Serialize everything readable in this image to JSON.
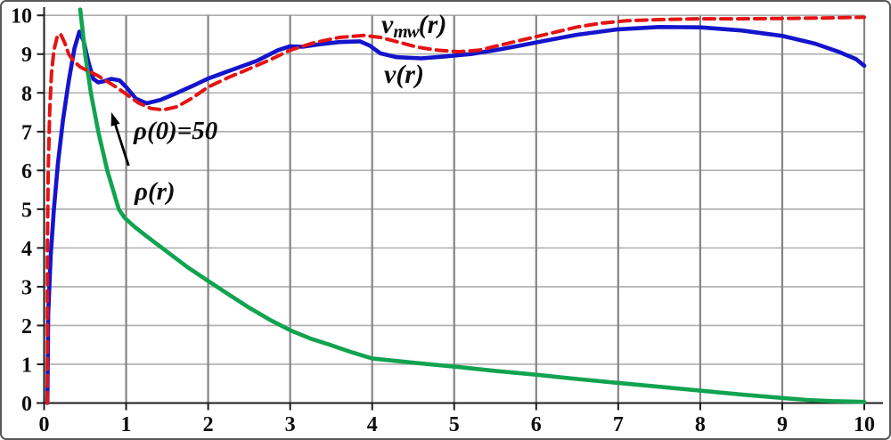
{
  "figure": {
    "background": "#ffffff",
    "border_color": "#585858"
  },
  "labels": {
    "vmw": {
      "main": "v",
      "sub": "mw",
      "rest": "(r)"
    },
    "v": "v(r)",
    "rho0": "ρ(0)=50",
    "rho": "ρ(r)"
  },
  "chart_data": {
    "type": "line",
    "title": "",
    "xlabel": "",
    "ylabel": "",
    "xlim": [
      0,
      10
    ],
    "ylim": [
      0,
      10
    ],
    "xticks": [
      0,
      1,
      2,
      3,
      4,
      5,
      6,
      7,
      8,
      9,
      10
    ],
    "yticks": [
      0,
      1,
      2,
      3,
      4,
      5,
      6,
      7,
      8,
      9,
      10
    ],
    "grid": true,
    "legend_position": "inline-text-labels",
    "colors": {
      "grid_vertical": "#858585",
      "grid_horizontal": "#aeaeae",
      "axis": "#1c1c1c",
      "tick_text": "#0d0d0d",
      "arrow": "#000000"
    },
    "series": [
      {
        "name": "v(r)",
        "color": "#1414cc",
        "style": "solid",
        "width": 4.6,
        "points": [
          [
            0.04,
            0
          ],
          [
            0.05,
            2.3
          ],
          [
            0.08,
            3.8
          ],
          [
            0.12,
            5.0
          ],
          [
            0.17,
            6.2
          ],
          [
            0.23,
            7.3
          ],
          [
            0.3,
            8.3
          ],
          [
            0.37,
            9.15
          ],
          [
            0.43,
            9.58
          ],
          [
            0.48,
            9.35
          ],
          [
            0.54,
            8.8
          ],
          [
            0.6,
            8.36
          ],
          [
            0.66,
            8.27
          ],
          [
            0.73,
            8.3
          ],
          [
            0.82,
            8.36
          ],
          [
            0.92,
            8.32
          ],
          [
            1.0,
            8.15
          ],
          [
            1.12,
            7.85
          ],
          [
            1.25,
            7.73
          ],
          [
            1.42,
            7.82
          ],
          [
            1.6,
            7.98
          ],
          [
            1.8,
            8.17
          ],
          [
            2.0,
            8.37
          ],
          [
            2.3,
            8.6
          ],
          [
            2.6,
            8.83
          ],
          [
            2.85,
            9.1
          ],
          [
            3.0,
            9.2
          ],
          [
            3.15,
            9.19
          ],
          [
            3.35,
            9.25
          ],
          [
            3.6,
            9.31
          ],
          [
            3.85,
            9.33
          ],
          [
            3.97,
            9.22
          ],
          [
            4.1,
            9.02
          ],
          [
            4.3,
            8.92
          ],
          [
            4.6,
            8.89
          ],
          [
            4.9,
            8.94
          ],
          [
            5.2,
            9.0
          ],
          [
            5.5,
            9.1
          ],
          [
            5.8,
            9.22
          ],
          [
            6.1,
            9.34
          ],
          [
            6.5,
            9.5
          ],
          [
            7.0,
            9.64
          ],
          [
            7.5,
            9.7
          ],
          [
            8.0,
            9.69
          ],
          [
            8.5,
            9.61
          ],
          [
            9.0,
            9.47
          ],
          [
            9.4,
            9.27
          ],
          [
            9.7,
            9.05
          ],
          [
            9.9,
            8.87
          ],
          [
            10.0,
            8.7
          ]
        ]
      },
      {
        "name": "rho(r)",
        "color": "#12a350",
        "style": "solid",
        "width": 4.6,
        "points": [
          [
            0.44,
            10.15
          ],
          [
            0.47,
            9.6
          ],
          [
            0.5,
            9.0
          ],
          [
            0.57,
            8.0
          ],
          [
            0.66,
            7.0
          ],
          [
            0.77,
            6.0
          ],
          [
            0.91,
            5.0
          ],
          [
            0.98,
            4.78
          ],
          [
            1.1,
            4.55
          ],
          [
            1.25,
            4.3
          ],
          [
            1.5,
            3.9
          ],
          [
            1.75,
            3.5
          ],
          [
            2.0,
            3.15
          ],
          [
            2.25,
            2.8
          ],
          [
            2.5,
            2.46
          ],
          [
            2.75,
            2.15
          ],
          [
            3.0,
            1.88
          ],
          [
            3.25,
            1.66
          ],
          [
            3.5,
            1.49
          ],
          [
            3.75,
            1.31
          ],
          [
            4.0,
            1.15
          ],
          [
            4.5,
            1.04
          ],
          [
            5.0,
            0.94
          ],
          [
            5.5,
            0.83
          ],
          [
            6.0,
            0.73
          ],
          [
            6.5,
            0.62
          ],
          [
            7.0,
            0.52
          ],
          [
            7.5,
            0.42
          ],
          [
            8.0,
            0.32
          ],
          [
            8.5,
            0.22
          ],
          [
            9.0,
            0.13
          ],
          [
            9.3,
            0.08
          ],
          [
            9.6,
            0.05
          ],
          [
            10.0,
            0.03
          ]
        ]
      },
      {
        "name": "v_mw(r)",
        "color": "#e41414",
        "style": "dashed",
        "dash": "12 7",
        "width": 4.0,
        "points": [
          [
            0.04,
            0
          ],
          [
            0.04,
            4.0
          ],
          [
            0.05,
            6.0
          ],
          [
            0.07,
            7.6
          ],
          [
            0.09,
            8.5
          ],
          [
            0.12,
            9.1
          ],
          [
            0.16,
            9.45
          ],
          [
            0.2,
            9.52
          ],
          [
            0.25,
            9.3
          ],
          [
            0.3,
            9.0
          ],
          [
            0.36,
            8.82
          ],
          [
            0.44,
            8.67
          ],
          [
            0.54,
            8.56
          ],
          [
            0.65,
            8.45
          ],
          [
            0.78,
            8.28
          ],
          [
            0.9,
            8.12
          ],
          [
            1.0,
            7.97
          ],
          [
            1.15,
            7.74
          ],
          [
            1.3,
            7.6
          ],
          [
            1.45,
            7.56
          ],
          [
            1.62,
            7.64
          ],
          [
            1.8,
            7.86
          ],
          [
            2.0,
            8.15
          ],
          [
            2.25,
            8.4
          ],
          [
            2.5,
            8.62
          ],
          [
            2.75,
            8.85
          ],
          [
            3.0,
            9.1
          ],
          [
            3.3,
            9.3
          ],
          [
            3.6,
            9.43
          ],
          [
            3.9,
            9.48
          ],
          [
            4.1,
            9.43
          ],
          [
            4.3,
            9.32
          ],
          [
            4.55,
            9.18
          ],
          [
            4.8,
            9.1
          ],
          [
            5.05,
            9.06
          ],
          [
            5.3,
            9.1
          ],
          [
            5.6,
            9.25
          ],
          [
            5.9,
            9.4
          ],
          [
            6.2,
            9.55
          ],
          [
            6.5,
            9.7
          ],
          [
            6.8,
            9.8
          ],
          [
            7.1,
            9.86
          ],
          [
            7.5,
            9.89
          ],
          [
            8.0,
            9.91
          ],
          [
            8.5,
            9.91
          ],
          [
            9.0,
            9.92
          ],
          [
            9.5,
            9.93
          ],
          [
            10.0,
            9.95
          ]
        ]
      }
    ],
    "annotations": [
      {
        "kind": "arrow",
        "from_xy": [
          1.03,
          6.12
        ],
        "to_xy": [
          0.82,
          7.5
        ]
      },
      {
        "kind": "text",
        "text": "ρ(0)=50",
        "near_xy": [
          1.6,
          6.9
        ]
      },
      {
        "kind": "text",
        "text": "ρ(r)",
        "near_xy": [
          1.4,
          5.3
        ]
      },
      {
        "kind": "text",
        "text": "v_mw(r)",
        "near_xy": [
          4.5,
          9.8
        ]
      },
      {
        "kind": "text",
        "text": "v(r)",
        "near_xy": [
          4.4,
          8.4
        ]
      }
    ]
  }
}
